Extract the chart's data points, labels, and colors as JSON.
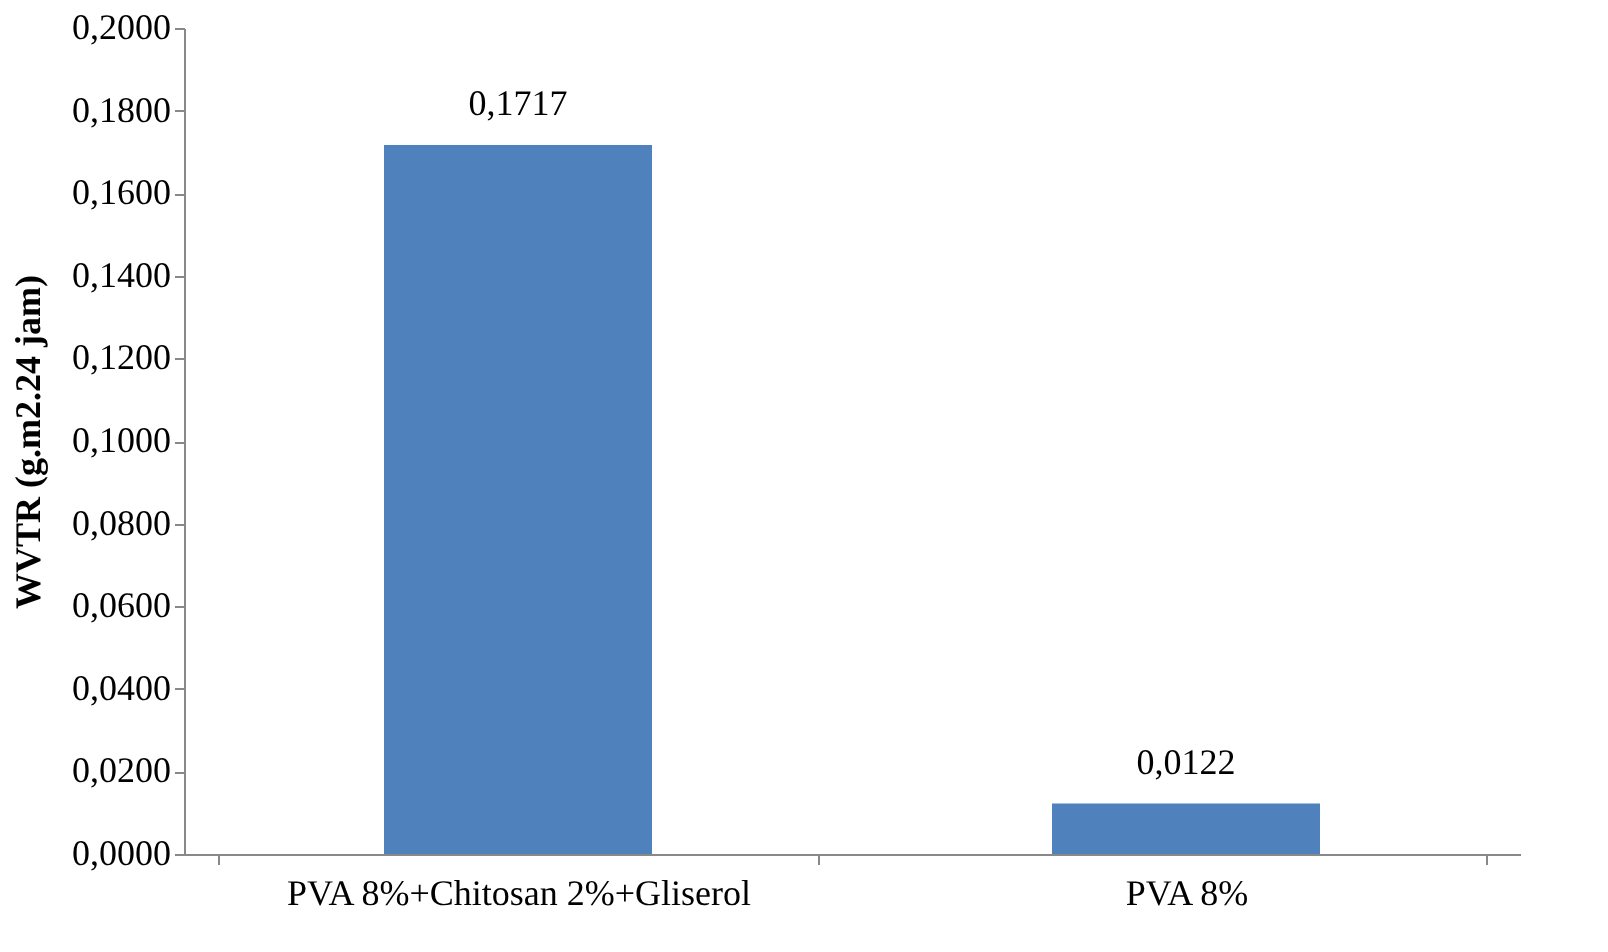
{
  "chart_data": {
    "type": "bar",
    "ylabel": "WVTR (g.m2.24 jam)",
    "categories": [
      "PVA 8%+Chitosan 2%+Gliserol",
      "PVA 8%"
    ],
    "values": [
      0.1717,
      0.0122
    ],
    "color": "#4f81bd",
    "value_labels": [
      "0,1717",
      "0,0122"
    ],
    "ylim": [
      0,
      0.2
    ],
    "yticks": [
      {
        "value": 0,
        "label": "0,0000"
      },
      {
        "value": 0.02,
        "label": "0,0200"
      },
      {
        "value": 0.04,
        "label": "0,0400"
      },
      {
        "value": 0.06,
        "label": "0,0600"
      },
      {
        "value": 0.08,
        "label": "0,0800"
      },
      {
        "value": 0.1,
        "label": "0,1000"
      },
      {
        "value": 0.12,
        "label": "0,1200"
      },
      {
        "value": 0.14,
        "label": "0,1400"
      },
      {
        "value": 0.16,
        "label": "0,1600"
      },
      {
        "value": 0.18,
        "label": "0,1800"
      },
      {
        "value": 0.2,
        "label": "0,2000"
      }
    ],
    "grid": false
  }
}
